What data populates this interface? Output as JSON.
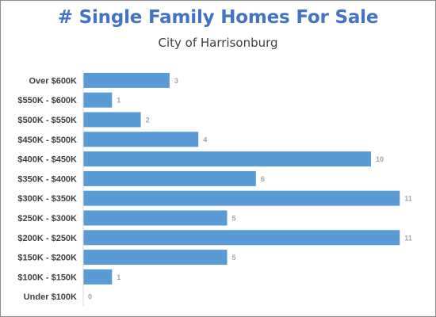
{
  "chart_data": {
    "type": "bar",
    "orientation": "horizontal",
    "title": "# Single Family Homes For Sale",
    "subtitle": "City of Harrisonburg",
    "xlabel": "",
    "ylabel": "",
    "categories": [
      "Over $600K",
      "$550K - $600K",
      "$500K - $550K",
      "$450K - $500K",
      "$400K - $450K",
      "$350K - $400K",
      "$300K - $350K",
      "$250K - $300K",
      "$200K - $250K",
      "$150K - $200K",
      "$100K - $150K",
      "Under $100K"
    ],
    "values": [
      3,
      1,
      2,
      4,
      10,
      6,
      11,
      5,
      11,
      5,
      1,
      0
    ],
    "xlim": [
      0,
      11
    ],
    "grid": false,
    "legend": "none",
    "data_labels": true,
    "colors": {
      "bar": "#5B9BD5",
      "title": "#4472C4",
      "data_label": "#A6A6A6",
      "axis": "#D9D9D9"
    }
  }
}
